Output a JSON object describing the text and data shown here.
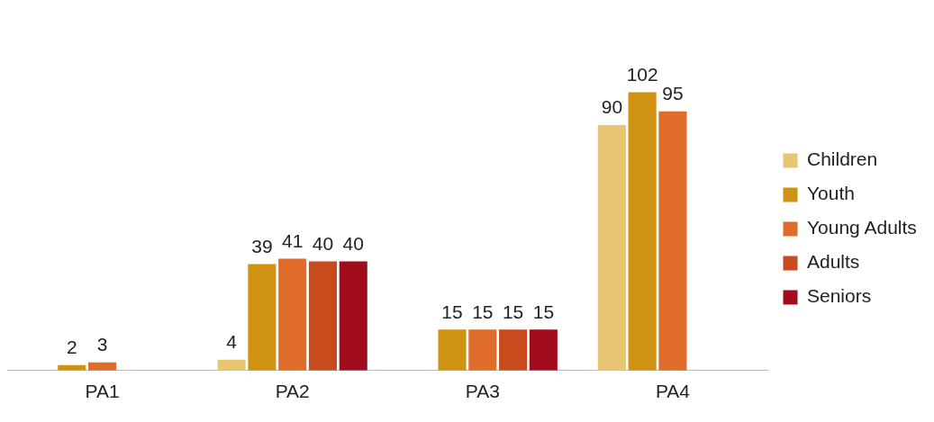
{
  "chart_data": {
    "type": "bar",
    "categories": [
      "PA1",
      "PA2",
      "PA3",
      "PA4"
    ],
    "series": [
      {
        "name": "Children",
        "color": "#e8c572",
        "values": [
          null,
          4,
          null,
          90
        ]
      },
      {
        "name": "Youth",
        "color": "#d09213",
        "values": [
          2,
          39,
          15,
          102
        ]
      },
      {
        "name": "Young Adults",
        "color": "#e06c2c",
        "values": [
          3,
          41,
          15,
          95
        ]
      },
      {
        "name": "Adults",
        "color": "#c84b1e",
        "values": [
          null,
          40,
          15,
          null
        ]
      },
      {
        "name": "Seniors",
        "color": "#a10c1c",
        "values": [
          null,
          40,
          15,
          null
        ]
      }
    ],
    "data_labels": true,
    "legend": "right",
    "grid": false
  }
}
